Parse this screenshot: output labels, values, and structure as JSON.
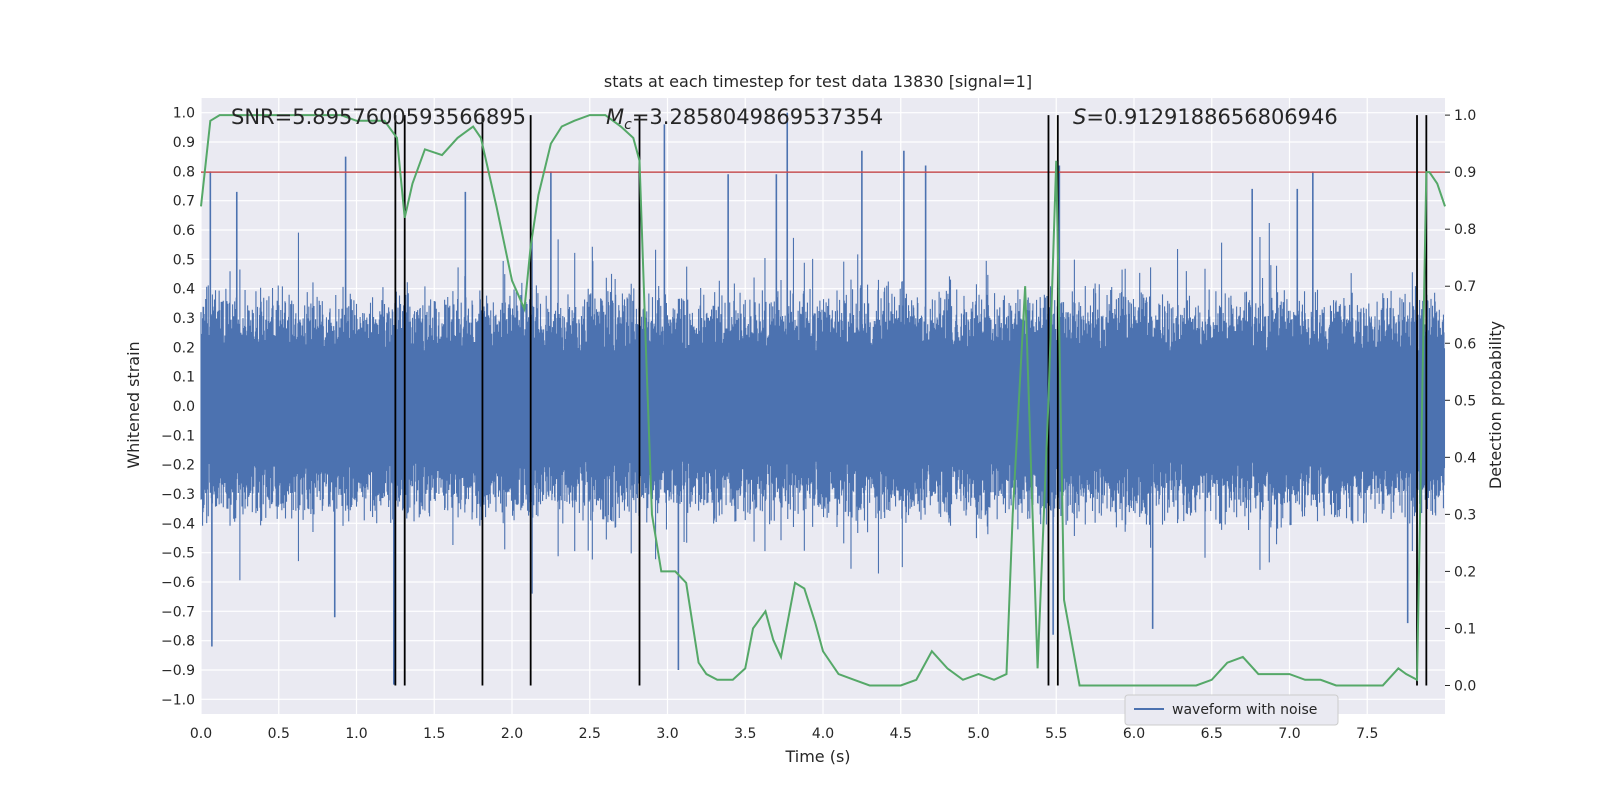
{
  "chart_data": {
    "type": "line",
    "title": "stats at each timestep for test data 13830 [signal=1]",
    "xlabel": "Time (s)",
    "ylabel_left": "Whitened strain",
    "ylabel_right": "Detection probability",
    "xlim": [
      0,
      8.0
    ],
    "ylim_left": [
      -1.05,
      1.05
    ],
    "ylim_right": [
      -0.05,
      1.03
    ],
    "x_ticks": [
      0.0,
      0.5,
      1.0,
      1.5,
      2.0,
      2.5,
      3.0,
      3.5,
      4.0,
      4.5,
      5.0,
      5.5,
      6.0,
      6.5,
      7.0,
      7.5
    ],
    "x_tick_labels": [
      "0.0",
      "0.5",
      "1.0",
      "1.5",
      "2.0",
      "2.5",
      "3.0",
      "3.5",
      "4.0",
      "4.5",
      "5.0",
      "5.5",
      "6.0",
      "6.5",
      "7.0",
      "7.5"
    ],
    "y_left_ticks": [
      1.0,
      0.9,
      0.8,
      0.7,
      0.6,
      0.5,
      0.4,
      0.3,
      0.2,
      0.1,
      0.0,
      -0.1,
      -0.2,
      -0.3,
      -0.4,
      -0.5,
      -0.6,
      -0.7,
      -0.8,
      -0.9,
      -1.0
    ],
    "y_left_tick_labels": [
      "1.0",
      "0.9",
      "0.8",
      "0.7",
      "0.6",
      "0.5",
      "0.4",
      "0.3",
      "0.2",
      "0.1",
      "0.0",
      "−0.1",
      "−0.2",
      "−0.3",
      "−0.4",
      "−0.5",
      "−0.6",
      "−0.7",
      "−0.8",
      "−0.9",
      "−1.0"
    ],
    "y_right_ticks": [
      1.0,
      0.9,
      0.8,
      0.7,
      0.6,
      0.5,
      0.4,
      0.3,
      0.2,
      0.1,
      0.0
    ],
    "y_right_tick_labels": [
      "1.0",
      "0.9",
      "0.8",
      "0.7",
      "0.6",
      "0.5",
      "0.4",
      "0.3",
      "0.2",
      "0.1",
      "0.0"
    ],
    "annotations": {
      "snr": "SNR=5.8957600593566895",
      "mc_symbol": "M",
      "mc_sub": "c",
      "mc_value": "=3.2858049869537354",
      "s_symbol": "S",
      "s_value": "=0.9129188656806946"
    },
    "legend": {
      "label": "waveform with noise",
      "position": "bottom-right"
    },
    "threshold_right": 0.9,
    "vertical_lines_x": [
      1.25,
      1.31,
      1.81,
      2.12,
      2.82,
      5.45,
      5.51,
      7.82,
      7.88
    ],
    "series": [
      {
        "name": "waveform with noise",
        "color": "#4c72b0",
        "kind": "noise",
        "envelope_typical": 0.42,
        "spikes": [
          {
            "x": 0.06,
            "y": 0.8
          },
          {
            "x": 0.07,
            "y": -0.82
          },
          {
            "x": 0.23,
            "y": 0.73
          },
          {
            "x": 0.93,
            "y": 0.85
          },
          {
            "x": 0.86,
            "y": -0.72
          },
          {
            "x": 1.24,
            "y": -0.95
          },
          {
            "x": 1.31,
            "y": -0.8
          },
          {
            "x": 1.7,
            "y": 0.73
          },
          {
            "x": 2.25,
            "y": 0.8
          },
          {
            "x": 2.82,
            "y": 0.83
          },
          {
            "x": 2.98,
            "y": 0.96
          },
          {
            "x": 3.07,
            "y": -0.9
          },
          {
            "x": 3.39,
            "y": 0.79
          },
          {
            "x": 3.7,
            "y": 0.79
          },
          {
            "x": 3.77,
            "y": 1.0
          },
          {
            "x": 4.25,
            "y": 0.87
          },
          {
            "x": 4.52,
            "y": 0.87
          },
          {
            "x": 4.66,
            "y": 0.82
          },
          {
            "x": 5.48,
            "y": -0.78
          },
          {
            "x": 5.52,
            "y": 0.82
          },
          {
            "x": 6.12,
            "y": -0.76
          },
          {
            "x": 6.76,
            "y": 0.74
          },
          {
            "x": 7.05,
            "y": 0.74
          },
          {
            "x": 7.15,
            "y": 0.8
          },
          {
            "x": 7.76,
            "y": -0.74
          }
        ]
      },
      {
        "name": "detection probability",
        "color": "#55a868",
        "axis": "right",
        "x": [
          0.0,
          0.06,
          0.12,
          0.2,
          0.3,
          0.4,
          0.5,
          0.6,
          0.7,
          0.8,
          0.9,
          1.0,
          1.1,
          1.18,
          1.26,
          1.31,
          1.36,
          1.44,
          1.55,
          1.65,
          1.7,
          1.75,
          1.8,
          1.9,
          2.0,
          2.08,
          2.12,
          2.17,
          2.25,
          2.32,
          2.4,
          2.5,
          2.6,
          2.7,
          2.78,
          2.82,
          2.86,
          2.9,
          2.96,
          3.05,
          3.12,
          3.2,
          3.25,
          3.32,
          3.42,
          3.5,
          3.55,
          3.63,
          3.68,
          3.73,
          3.82,
          3.88,
          3.95,
          4.0,
          4.1,
          4.2,
          4.3,
          4.4,
          4.5,
          4.6,
          4.7,
          4.8,
          4.9,
          5.0,
          5.1,
          5.18,
          5.22,
          5.3,
          5.38,
          5.45,
          5.5,
          5.55,
          5.65,
          5.75,
          5.85,
          5.95,
          6.05,
          6.15,
          6.3,
          6.4,
          6.5,
          6.6,
          6.7,
          6.8,
          6.9,
          7.0,
          7.1,
          7.2,
          7.3,
          7.4,
          7.5,
          7.6,
          7.7,
          7.75,
          7.82,
          7.88,
          7.9,
          7.95,
          8.0
        ],
        "y": [
          0.84,
          0.99,
          1.0,
          1.0,
          1.0,
          1.0,
          1.0,
          1.0,
          1.0,
          1.0,
          1.0,
          0.99,
          0.99,
          0.99,
          0.96,
          0.82,
          0.88,
          0.94,
          0.93,
          0.96,
          0.97,
          0.98,
          0.96,
          0.84,
          0.71,
          0.66,
          0.77,
          0.86,
          0.95,
          0.98,
          0.99,
          1.0,
          1.0,
          0.98,
          0.96,
          0.92,
          0.6,
          0.3,
          0.2,
          0.2,
          0.18,
          0.04,
          0.02,
          0.01,
          0.01,
          0.03,
          0.1,
          0.13,
          0.08,
          0.05,
          0.18,
          0.17,
          0.11,
          0.06,
          0.02,
          0.01,
          0.0,
          0.0,
          0.0,
          0.01,
          0.06,
          0.03,
          0.01,
          0.02,
          0.01,
          0.02,
          0.3,
          0.7,
          0.03,
          0.5,
          0.92,
          0.15,
          0.0,
          0.0,
          0.0,
          0.0,
          0.0,
          0.0,
          0.0,
          0.0,
          0.01,
          0.04,
          0.05,
          0.02,
          0.02,
          0.02,
          0.01,
          0.01,
          0.0,
          0.0,
          0.0,
          0.0,
          0.03,
          0.02,
          0.01,
          0.9,
          0.9,
          0.88,
          0.84
        ]
      }
    ],
    "colors": {
      "plot_bg": "#eaeaf2",
      "grid": "#ffffff",
      "threshold": "#c44e52",
      "vline": "#000000"
    }
  }
}
